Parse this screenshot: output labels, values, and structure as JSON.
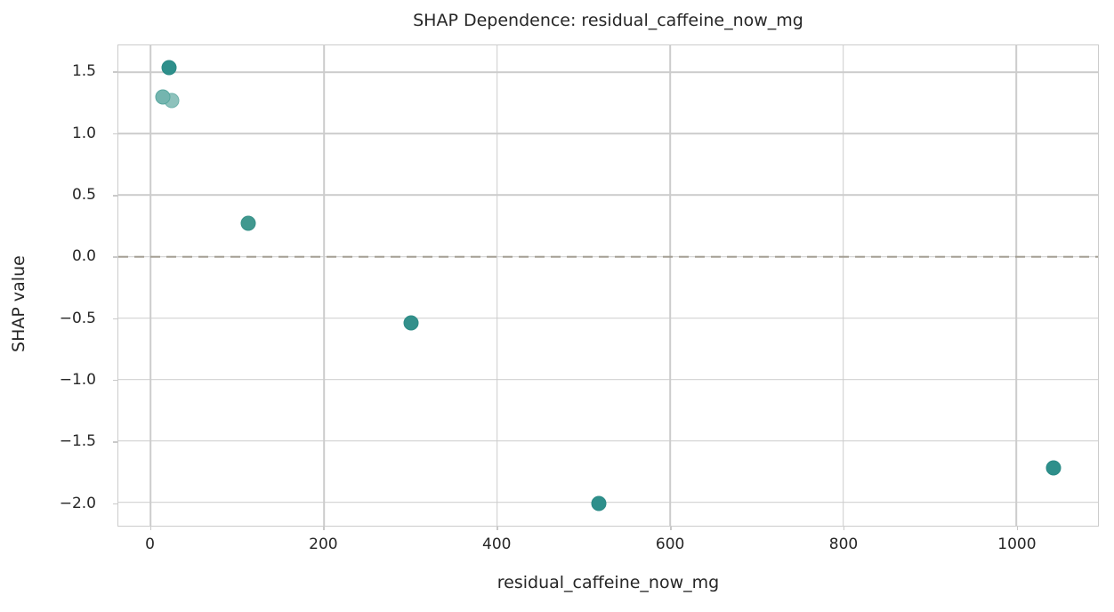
{
  "chart_data": {
    "type": "scatter",
    "title": "SHAP Dependence: residual_caffeine_now_mg",
    "xlabel": "residual_caffeine_now_mg",
    "ylabel": "SHAP value",
    "xlim": [
      -37.5,
      1094.5
    ],
    "ylim": [
      -2.19,
      1.72
    ],
    "grid": true,
    "legend": "none",
    "xticks": [
      {
        "v": 0,
        "label": "0"
      },
      {
        "v": 200,
        "label": "200"
      },
      {
        "v": 400,
        "label": "400"
      },
      {
        "v": 600,
        "label": "600"
      },
      {
        "v": 800,
        "label": "800"
      },
      {
        "v": 1000,
        "label": "1000"
      }
    ],
    "yticks": [
      {
        "v": 1.5,
        "label": "1.5"
      },
      {
        "v": 1.0,
        "label": "1.0"
      },
      {
        "v": 0.5,
        "label": "0.5"
      },
      {
        "v": 0.0,
        "label": "0.0"
      },
      {
        "v": -0.5,
        "label": "−0.5"
      },
      {
        "v": -1.0,
        "label": "−1.0"
      },
      {
        "v": -1.5,
        "label": "−1.5"
      },
      {
        "v": -2.0,
        "label": "−2.0"
      }
    ],
    "zero_line": {
      "y": 0.0,
      "style": "dashed",
      "color": "#a29d92"
    },
    "points": [
      {
        "x": 21,
        "y": 1.54,
        "fill": "#2e8f8b",
        "edge": "#2a8a86",
        "z": 1
      },
      {
        "x": 14,
        "y": 1.3,
        "fill": "#74b5af",
        "edge": "#58a79f",
        "z": 3
      },
      {
        "x": 24,
        "y": 1.27,
        "fill": "#8ec2bc",
        "edge": "#6fb2ab",
        "z": 2
      },
      {
        "x": 113,
        "y": 0.27,
        "fill": "#41988f",
        "edge": "#379088",
        "z": 1
      },
      {
        "x": 301,
        "y": -0.54,
        "fill": "#33908b",
        "edge": "#2d8b86",
        "z": 1
      },
      {
        "x": 518,
        "y": -2.01,
        "fill": "#2e8f8b",
        "edge": "#2a8a86",
        "z": 1
      },
      {
        "x": 1043,
        "y": -1.72,
        "fill": "#2e8f8b",
        "edge": "#2a8a86",
        "z": 1
      }
    ],
    "colors": {
      "grid": "#cccccc",
      "zero_line": "#a29d92",
      "text": "#262626",
      "marker_base": "#2e8f8b",
      "background": "#ffffff"
    }
  }
}
